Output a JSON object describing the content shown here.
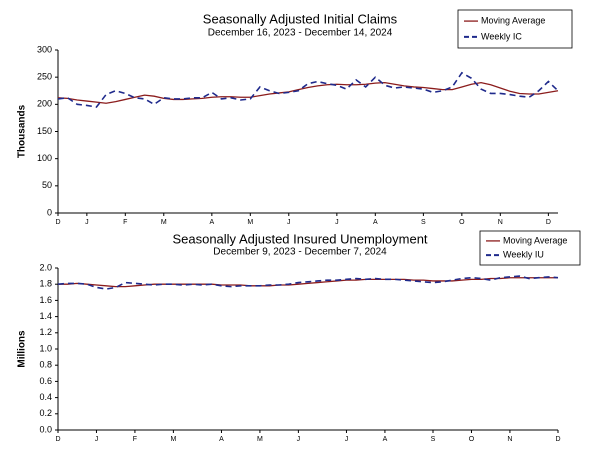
{
  "chart_data": [
    {
      "type": "line",
      "title": "Seasonally Adjusted Initial Claims",
      "subtitle": "December 16, 2023 - December 14, 2024",
      "y_label": "Thousands",
      "categories": [
        "D",
        null,
        null,
        "J",
        null,
        null,
        null,
        "F",
        null,
        null,
        null,
        "M",
        null,
        null,
        null,
        null,
        "A",
        null,
        null,
        null,
        "M",
        null,
        null,
        null,
        "J",
        null,
        null,
        null,
        null,
        "J",
        null,
        null,
        null,
        "A",
        null,
        null,
        null,
        null,
        "S",
        null,
        null,
        null,
        "O",
        null,
        null,
        null,
        "N",
        null,
        null,
        null,
        null,
        "D",
        null
      ],
      "series": [
        {
          "name": "Moving Average",
          "color": "#8b1c1c",
          "dashed": false,
          "values": [
            212,
            211,
            208,
            206,
            204,
            202,
            205,
            209,
            213,
            217,
            215,
            211,
            209,
            209,
            210,
            211,
            213,
            214,
            214,
            213,
            213,
            216,
            219,
            221,
            223,
            227,
            231,
            234,
            236,
            237,
            236,
            236,
            237,
            239,
            240,
            237,
            234,
            232,
            231,
            229,
            227,
            227,
            232,
            237,
            240,
            236,
            230,
            224,
            220,
            219,
            219,
            222,
            225
          ]
        },
        {
          "name": "Weekly IC",
          "color": "#1f2a8c",
          "dashed": true,
          "values": [
            210,
            212,
            200,
            198,
            195,
            218,
            225,
            220,
            212,
            210,
            200,
            212,
            210,
            210,
            212,
            212,
            222,
            210,
            212,
            208,
            210,
            232,
            225,
            220,
            222,
            225,
            238,
            242,
            238,
            235,
            228,
            245,
            232,
            250,
            235,
            230,
            232,
            230,
            228,
            222,
            225,
            232,
            258,
            248,
            228,
            220,
            220,
            218,
            215,
            213,
            225,
            242,
            225
          ]
        }
      ],
      "ylim": [
        0,
        300
      ],
      "yticks": [
        0,
        50,
        100,
        150,
        200,
        250,
        300
      ],
      "grid": false,
      "legend": "upper right"
    },
    {
      "type": "line",
      "title": "Seasonally Adjusted Insured Unemployment",
      "subtitle": "December 9, 2023 - December 7, 2024",
      "y_label": "Millions",
      "categories": [
        "D",
        null,
        null,
        null,
        "J",
        null,
        null,
        null,
        "F",
        null,
        null,
        null,
        "M",
        null,
        null,
        null,
        null,
        "A",
        null,
        null,
        null,
        "M",
        null,
        null,
        null,
        "J",
        null,
        null,
        null,
        null,
        "J",
        null,
        null,
        null,
        "A",
        null,
        null,
        null,
        null,
        "S",
        null,
        null,
        null,
        "O",
        null,
        null,
        null,
        "N",
        null,
        null,
        null,
        null,
        "D"
      ],
      "series": [
        {
          "name": "Moving Average",
          "color": "#8b1c1c",
          "dashed": false,
          "values": [
            1.8,
            1.8,
            1.81,
            1.8,
            1.79,
            1.78,
            1.77,
            1.77,
            1.78,
            1.79,
            1.8,
            1.8,
            1.8,
            1.8,
            1.8,
            1.8,
            1.8,
            1.79,
            1.79,
            1.79,
            1.78,
            1.78,
            1.78,
            1.79,
            1.79,
            1.8,
            1.81,
            1.82,
            1.83,
            1.84,
            1.85,
            1.85,
            1.86,
            1.86,
            1.86,
            1.86,
            1.86,
            1.85,
            1.85,
            1.84,
            1.84,
            1.84,
            1.85,
            1.86,
            1.86,
            1.87,
            1.87,
            1.88,
            1.88,
            1.88,
            1.88,
            1.88,
            1.88
          ]
        },
        {
          "name": "Weekly IU",
          "color": "#1f2a8c",
          "dashed": true,
          "values": [
            1.8,
            1.81,
            1.81,
            1.8,
            1.76,
            1.74,
            1.76,
            1.82,
            1.81,
            1.8,
            1.79,
            1.8,
            1.8,
            1.79,
            1.8,
            1.79,
            1.8,
            1.78,
            1.77,
            1.78,
            1.78,
            1.78,
            1.79,
            1.79,
            1.8,
            1.82,
            1.83,
            1.84,
            1.85,
            1.85,
            1.86,
            1.87,
            1.86,
            1.87,
            1.86,
            1.86,
            1.85,
            1.84,
            1.83,
            1.82,
            1.83,
            1.85,
            1.87,
            1.88,
            1.87,
            1.85,
            1.88,
            1.89,
            1.9,
            1.87,
            1.88,
            1.89,
            1.88
          ]
        }
      ],
      "ylim": [
        0,
        2
      ],
      "yticks": [
        {
          "value": 0,
          "label": "0.0"
        },
        0.2,
        0.4,
        0.6,
        0.8,
        {
          "value": 1,
          "label": "1.0"
        },
        1.2,
        1.4,
        1.6,
        1.8,
        {
          "value": 2,
          "label": "2.0"
        }
      ],
      "grid": false,
      "legend": "upper right"
    }
  ]
}
